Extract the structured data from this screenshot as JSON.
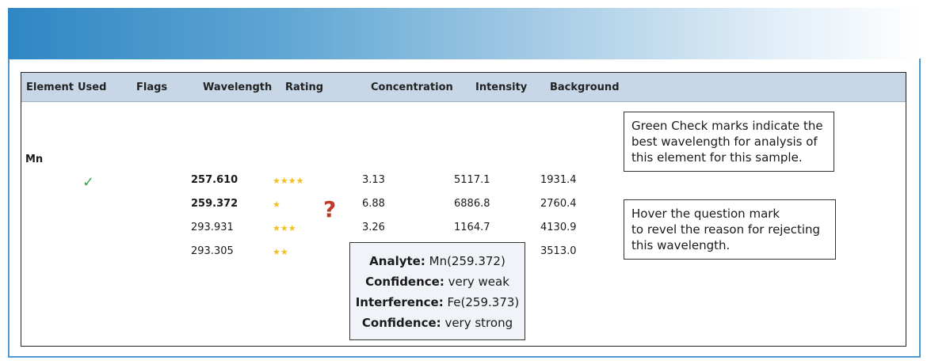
{
  "columns": [
    "Element",
    "Used",
    "Flags",
    "Wavelength",
    "Rating",
    "Concentration",
    "Intensity",
    "Background"
  ],
  "element": "Mn",
  "used_check_icon": "check-icon",
  "rows": [
    {
      "wavelength": "257.610",
      "rating": "★★★★",
      "concentration": "3.13",
      "intensity": "5117.1",
      "background": "1931.4",
      "used": true
    },
    {
      "wavelength": "259.372",
      "rating": "★",
      "concentration": "6.88",
      "intensity": "6886.8",
      "background": "2760.4",
      "flag": "question-mark-icon"
    },
    {
      "wavelength": "293.931",
      "rating": "★★★",
      "concentration": "3.26",
      "intensity": "1164.7",
      "background": "4130.9"
    },
    {
      "wavelength": "293.305",
      "rating": "★★",
      "concentration": "",
      "intensity": "",
      "background": "3513.0"
    }
  ],
  "flag_symbol": "?",
  "check_symbol": "✓",
  "tooltip": {
    "analyte_label": "Analyte:",
    "analyte_value": "Mn(259.372)",
    "confidence1_label": "Confidence:",
    "confidence1_value": "very weak",
    "interference_label": "Interference:",
    "interference_value": "Fe(259.373)",
    "confidence2_label": "Confidence:",
    "confidence2_value": "very strong"
  },
  "notes": {
    "green_check": [
      "Green Check marks indicate the",
      "best wavelength for analysis of",
      "this element for this sample."
    ],
    "hover_question": [
      "Hover the question mark",
      "to revel the reason for rejecting",
      "this wavelength."
    ]
  },
  "colors": {
    "check": "#3aa657",
    "star": "#f2c01c",
    "question": "#c0392b",
    "header": "#c7d7e7",
    "banner_start": "#2f86c4"
  }
}
